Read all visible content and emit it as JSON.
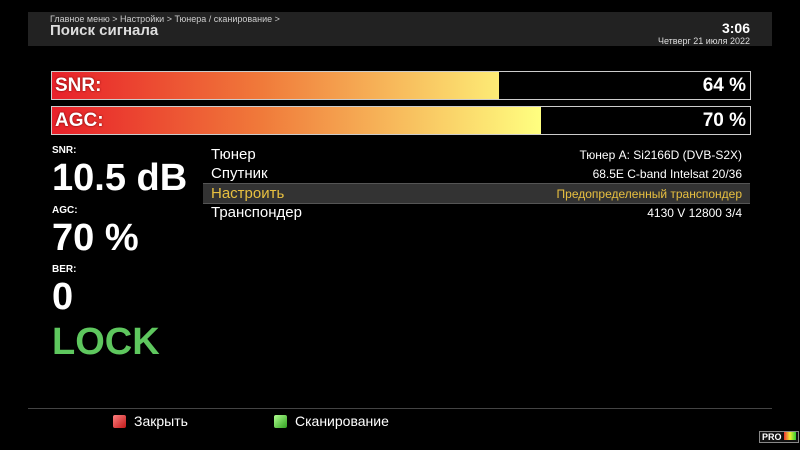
{
  "header": {
    "breadcrumb": "Главное меню > Настройки > Тюнера / сканирование >",
    "title": "Поиск сигнала",
    "time": "3:06",
    "date": "Четверг 21 июля 2022"
  },
  "bars": [
    {
      "label": "SNR:",
      "value": "64 %",
      "percent": 64
    },
    {
      "label": "AGC:",
      "value": "70 %",
      "percent": 70
    }
  ],
  "stats": {
    "snr_label": "SNR:",
    "snr_value": "10.5 dB",
    "agc_label": "AGC:",
    "agc_value": "70 %",
    "ber_label": "BER:",
    "ber_value": "0",
    "lock": "LOCK",
    "lock_color": "#5ec75e"
  },
  "settings": [
    {
      "key": "Тюнер",
      "value": "Тюнер A: Si2166D (DVB-S2X)"
    },
    {
      "key": "Спутник",
      "value": "68.5E C-band Intelsat 20/36"
    },
    {
      "key": "Настроить",
      "value": "Предопределенный транспондер",
      "selected": true
    },
    {
      "key": "Транспондер",
      "value": "4130 V 12800 3/4"
    }
  ],
  "footer": {
    "close_label": "Закрыть",
    "scan_label": "Сканирование",
    "red": "#e03030",
    "green": "#50c040"
  },
  "watermark": "PRO"
}
